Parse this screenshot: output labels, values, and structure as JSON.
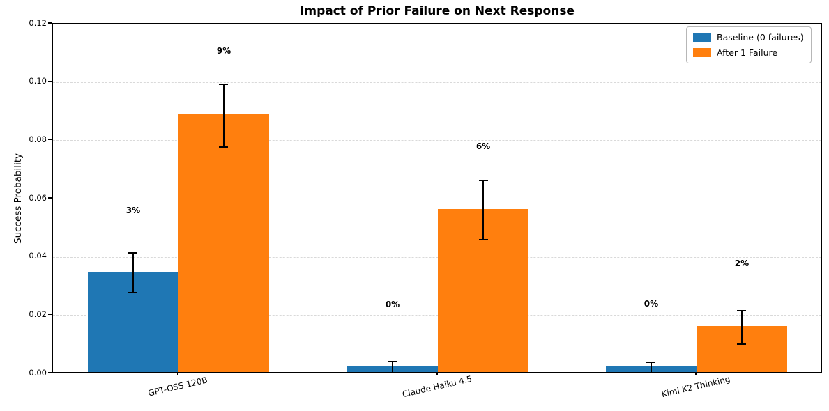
{
  "chart_data": {
    "type": "bar",
    "title": "Impact of Prior Failure on Next Response",
    "xlabel": "",
    "ylabel": "Success Probability",
    "ylim": [
      0,
      0.12
    ],
    "yticks": [
      "0.00",
      "0.02",
      "0.04",
      "0.06",
      "0.08",
      "0.10",
      "0.12"
    ],
    "ytick_values": [
      0.0,
      0.02,
      0.04,
      0.06,
      0.08,
      0.1,
      0.12
    ],
    "grid": "horizontal-dashed",
    "legend_position": "upper-right",
    "categories": [
      "GPT-OSS 120B",
      "Claude Haiku 4.5",
      "Kimi K2 Thinking"
    ],
    "series": [
      {
        "name": "Baseline (0 failures)",
        "color": "#1f77b4",
        "values": [
          0.0345,
          0.0018,
          0.0019
        ],
        "errors": [
          0.0068,
          0.0022,
          0.002
        ],
        "bar_labels": [
          "3%",
          "0%",
          "0%"
        ],
        "bar_label_y": [
          0.0557,
          0.0234,
          0.0237
        ]
      },
      {
        "name": "After 1 Failure",
        "color": "#ff7f0e",
        "values": [
          0.0885,
          0.056,
          0.0158
        ],
        "errors": [
          0.0107,
          0.0102,
          0.0057
        ],
        "bar_labels": [
          "9%",
          "6%",
          "2%"
        ],
        "bar_label_y": [
          0.1104,
          0.0777,
          0.0375
        ]
      }
    ],
    "error_bar_color": "#000000"
  }
}
